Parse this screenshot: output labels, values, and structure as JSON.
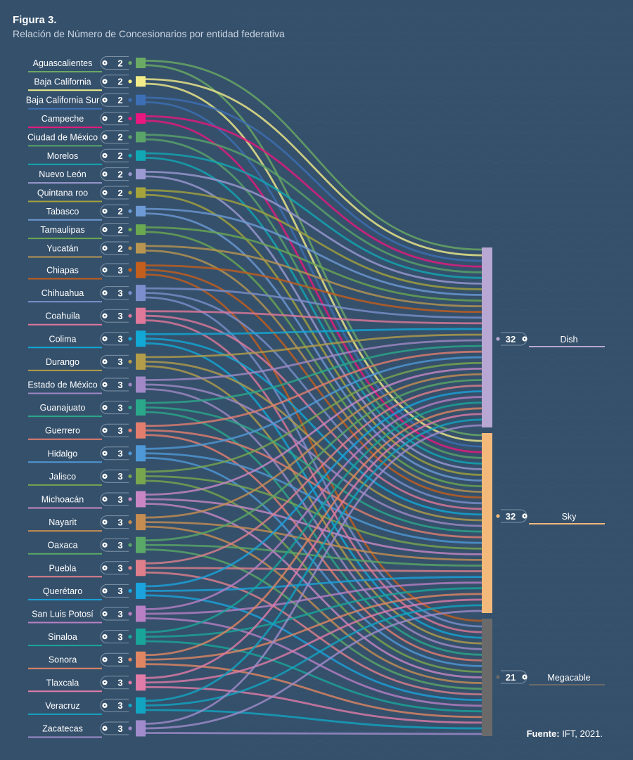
{
  "chart_data": {
    "type": "sankey",
    "title": "Figura 3.",
    "subtitle": "Relación de Número de Concesionarios por entidad federativa",
    "source_label": "Fuente:",
    "source_text": "IFT, 2021.",
    "states": [
      {
        "name": "Aguascalientes",
        "count": 2,
        "color": "#6aaa64",
        "targets": [
          "Dish",
          "Sky"
        ]
      },
      {
        "name": "Baja California",
        "count": 2,
        "color": "#f2ec8a",
        "targets": [
          "Dish",
          "Sky"
        ]
      },
      {
        "name": "Baja California Sur",
        "count": 2,
        "color": "#3d6fb5",
        "targets": [
          "Dish",
          "Sky"
        ]
      },
      {
        "name": "Campeche",
        "count": 2,
        "color": "#e8187e",
        "targets": [
          "Dish",
          "Sky"
        ]
      },
      {
        "name": "Ciudad de México",
        "count": 2,
        "color": "#5aa469",
        "targets": [
          "Dish",
          "Sky"
        ]
      },
      {
        "name": "Morelos",
        "count": 2,
        "color": "#12a7b4",
        "targets": [
          "Dish",
          "Sky"
        ]
      },
      {
        "name": "Nuevo León",
        "count": 2,
        "color": "#9c9ad2",
        "targets": [
          "Dish",
          "Sky"
        ]
      },
      {
        "name": "Quintana roo",
        "count": 2,
        "color": "#a4a33c",
        "targets": [
          "Dish",
          "Sky"
        ]
      },
      {
        "name": "Tabasco",
        "count": 2,
        "color": "#6d9ad4",
        "targets": [
          "Dish",
          "Sky"
        ]
      },
      {
        "name": "Tamaulipas",
        "count": 2,
        "color": "#6aa851",
        "targets": [
          "Dish",
          "Sky"
        ]
      },
      {
        "name": "Yucatán",
        "count": 2,
        "color": "#b89550",
        "targets": [
          "Dish",
          "Sky"
        ]
      },
      {
        "name": "Chiapas",
        "count": 3,
        "color": "#c45e1c",
        "targets": [
          "Dish",
          "Sky",
          "Megacable"
        ]
      },
      {
        "name": "Chihuahua",
        "count": 3,
        "color": "#7c8fcc",
        "targets": [
          "Dish",
          "Sky",
          "Megacable"
        ]
      },
      {
        "name": "Coahuila",
        "count": 3,
        "color": "#e0789a",
        "targets": [
          "Dish",
          "Sky",
          "Megacable"
        ]
      },
      {
        "name": "Colima",
        "count": 3,
        "color": "#12a8d6",
        "targets": [
          "Dish",
          "Sky",
          "Megacable"
        ]
      },
      {
        "name": "Durango",
        "count": 3,
        "color": "#b39c4a",
        "targets": [
          "Dish",
          "Sky",
          "Megacable"
        ]
      },
      {
        "name": "Estado de México",
        "count": 3,
        "color": "#a089c6",
        "targets": [
          "Dish",
          "Sky",
          "Megacable"
        ]
      },
      {
        "name": "Guanajuato",
        "count": 3,
        "color": "#2aa889",
        "targets": [
          "Dish",
          "Sky",
          "Megacable"
        ]
      },
      {
        "name": "Guerrero",
        "count": 3,
        "color": "#e37e6f",
        "targets": [
          "Dish",
          "Sky",
          "Megacable"
        ]
      },
      {
        "name": "Hidalgo",
        "count": 3,
        "color": "#4f98d6",
        "targets": [
          "Dish",
          "Sky",
          "Megacable"
        ]
      },
      {
        "name": "Jalisco",
        "count": 3,
        "color": "#78a64e",
        "targets": [
          "Dish",
          "Sky",
          "Megacable"
        ]
      },
      {
        "name": "Michoacán",
        "count": 3,
        "color": "#c887c4",
        "targets": [
          "Dish",
          "Sky",
          "Megacable"
        ]
      },
      {
        "name": "Nayarit",
        "count": 3,
        "color": "#c68d52",
        "targets": [
          "Dish",
          "Sky",
          "Megacable"
        ]
      },
      {
        "name": "Oaxaca",
        "count": 3,
        "color": "#5aa867",
        "targets": [
          "Dish",
          "Sky",
          "Megacable"
        ]
      },
      {
        "name": "Puebla",
        "count": 3,
        "color": "#e07f8c",
        "targets": [
          "Dish",
          "Sky",
          "Megacable"
        ]
      },
      {
        "name": "Querétaro",
        "count": 3,
        "color": "#1aa3dc",
        "targets": [
          "Dish",
          "Sky",
          "Megacable"
        ]
      },
      {
        "name": "San Luis Potosí",
        "count": 3,
        "color": "#b780c4",
        "targets": [
          "Dish",
          "Sky",
          "Megacable"
        ]
      },
      {
        "name": "Sinaloa",
        "count": 3,
        "color": "#1aa59a",
        "targets": [
          "Dish",
          "Sky",
          "Megacable"
        ]
      },
      {
        "name": "Sonora",
        "count": 3,
        "color": "#e08663",
        "targets": [
          "Dish",
          "Sky",
          "Megacable"
        ]
      },
      {
        "name": "Tlaxcala",
        "count": 3,
        "color": "#e07ca7",
        "targets": [
          "Dish",
          "Sky",
          "Megacable"
        ]
      },
      {
        "name": "Veracruz",
        "count": 3,
        "color": "#12a5c2",
        "targets": [
          "Dish",
          "Sky",
          "Megacable"
        ]
      },
      {
        "name": "Zacatecas",
        "count": 3,
        "color": "#a08ccc",
        "targets": [
          "Dish",
          "Sky",
          "Megacable"
        ]
      }
    ],
    "targets": [
      {
        "name": "Dish",
        "count": 32,
        "color": "#b7a7d2"
      },
      {
        "name": "Sky",
        "count": 32,
        "color": "#f3b97b"
      },
      {
        "name": "Megacable",
        "count": 21,
        "color": "#6a6a6a"
      }
    ]
  }
}
